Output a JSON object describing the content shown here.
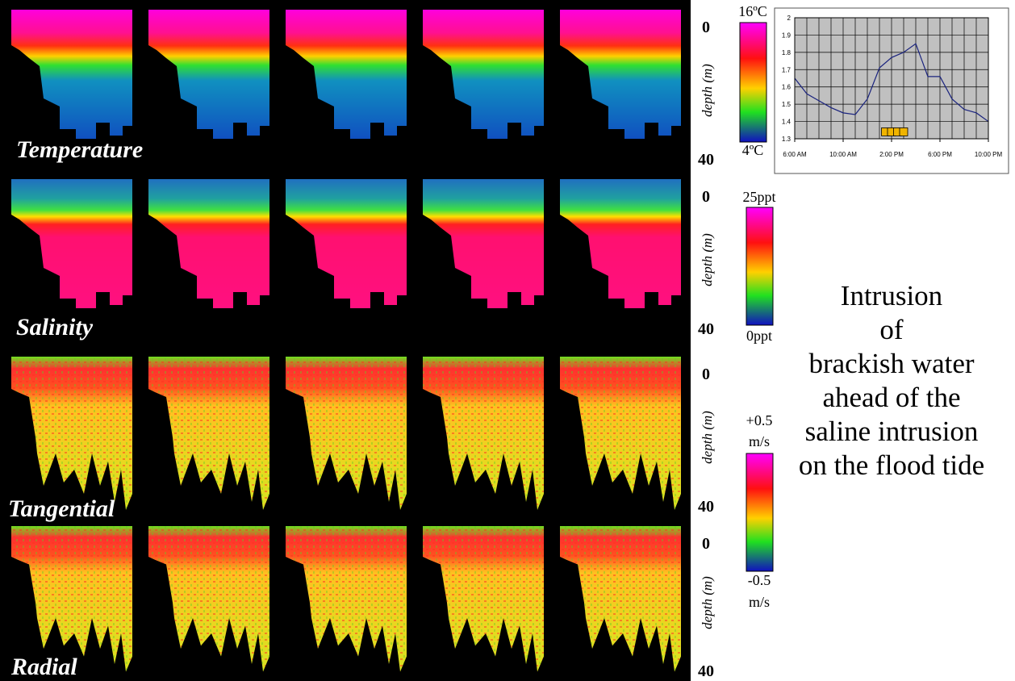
{
  "rows": [
    {
      "label": "Temperature",
      "depth_top": "0",
      "depth_label": "depth (m)",
      "depth_bottom": "40"
    },
    {
      "label": "Salinity",
      "depth_top": "0",
      "depth_label": "depth (m)",
      "depth_bottom": "40"
    },
    {
      "label": "Tangential",
      "depth_top": "0",
      "depth_label": "depth (m)",
      "depth_bottom": "40"
    },
    {
      "label": "Radial",
      "depth_top": "0",
      "depth_label": "depth (m)",
      "depth_bottom": "40"
    }
  ],
  "colorbars": [
    {
      "max": "16ºC",
      "min": "4ºC"
    },
    {
      "max": "25ppt",
      "min": "0ppt"
    },
    {
      "max": "+0.5",
      "max_unit": "m/s",
      "min": "-0.5",
      "min_unit": "m/s"
    }
  ],
  "caption_lines": [
    "Intrusion",
    "of",
    "brackish water",
    "ahead of the",
    "saline intrusion",
    "on the flood tide"
  ],
  "chart_data": {
    "type": "line",
    "x": [
      6,
      7,
      8,
      9,
      10,
      11,
      12,
      13,
      14,
      15,
      16,
      17,
      18,
      19,
      20,
      21,
      22
    ],
    "series": [
      {
        "color": "#1a237e",
        "values": [
          1.65,
          1.56,
          1.52,
          1.48,
          1.45,
          1.44,
          1.53,
          1.71,
          1.77,
          1.8,
          1.85,
          1.66,
          1.66,
          1.53,
          1.47,
          1.45,
          1.4
        ]
      }
    ],
    "markers": {
      "x": [
        13.5,
        14,
        14.5,
        15
      ],
      "y": [
        1.34,
        1.34,
        1.34,
        1.34
      ],
      "color": "#f0b400"
    },
    "xlim": [
      6,
      22
    ],
    "xticks": [
      {
        "value": 6,
        "label": "6:00 AM"
      },
      {
        "value": 10,
        "label": "10:00 AM"
      },
      {
        "value": 14,
        "label": "2:00 PM"
      },
      {
        "value": 18,
        "label": "6:00 PM"
      },
      {
        "value": 22,
        "label": "10:00 PM"
      }
    ],
    "ylim": [
      1.3,
      2
    ],
    "yticks": [
      1.3,
      1.4,
      1.5,
      1.6,
      1.7,
      1.8,
      1.9,
      2
    ],
    "grid": true
  }
}
